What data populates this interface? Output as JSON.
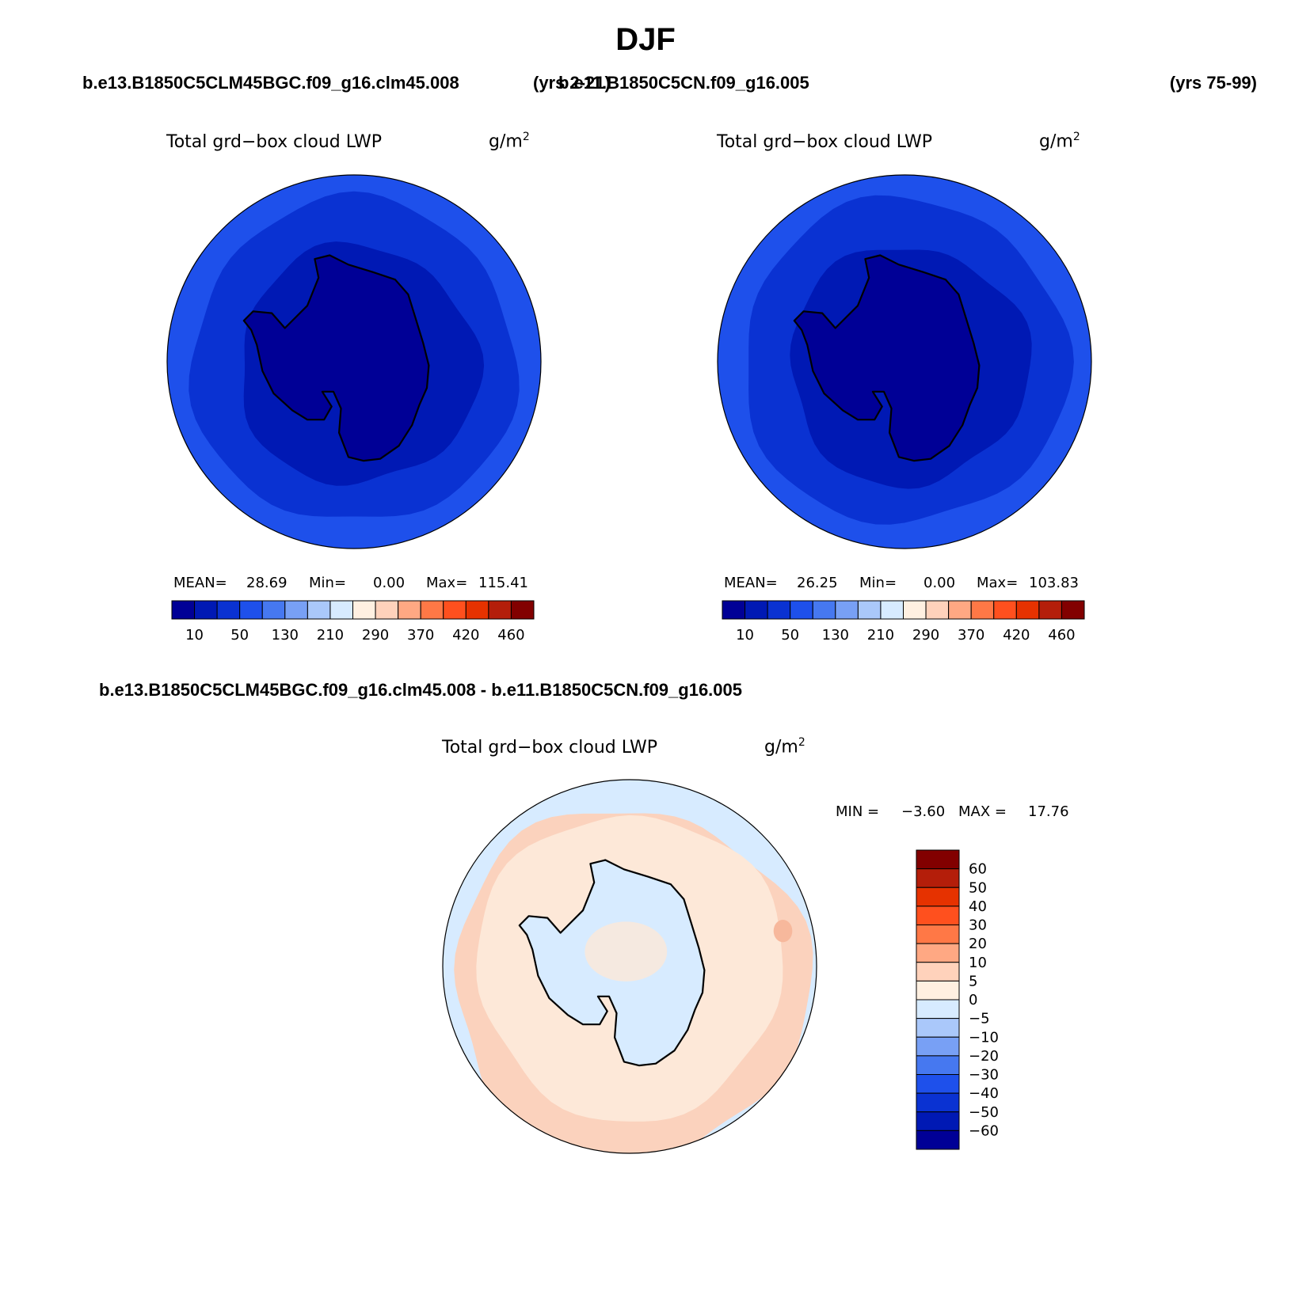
{
  "page": {
    "title": "DJF",
    "case1": "b.e13.B1850C5CLM45BGC.f09_g16.clm45.008",
    "case1_years": "(yrs 2-21)",
    "case2": "b.e11.B1850C5CN.f09_g16.005",
    "case2_years": "(yrs 75-99)",
    "diff_title": "b.e13.B1850C5CLM45BGC.f09_g16.clm45.008 - b.e11.B1850C5CN.f09_g16.005"
  },
  "panels": [
    {
      "title": "Total grd−box cloud LWP",
      "units_base": "g/m",
      "units_exp": "2",
      "mean_label": "MEAN=",
      "mean": "28.69",
      "min_label": "Min=",
      "min": "0.00",
      "max_label": "Max=",
      "max": "115.41"
    },
    {
      "title": "Total grd−box cloud LWP",
      "units_base": "g/m",
      "units_exp": "2",
      "mean_label": "MEAN=",
      "mean": "26.25",
      "min_label": "Min=",
      "min": "0.00",
      "max_label": "Max=",
      "max": "103.83"
    }
  ],
  "diff_panel": {
    "title": "Total grd−box cloud LWP",
    "units_base": "g/m",
    "units_exp": "2",
    "min_label": "MIN =",
    "min": "−3.60",
    "max_label": "MAX =",
    "max": "17.76"
  },
  "chart_data": [
    {
      "type": "heatmap",
      "title": "Total grd-box cloud LWP",
      "units": "g/m^2",
      "projection": "south-polar stereographic",
      "run": "b.e13.B1850C5CLM45BGC.f09_g16.clm45.008 (yrs 2-21)",
      "colorbar_ticks": [
        "10",
        "50",
        "130",
        "210",
        "290",
        "370",
        "420",
        "460"
      ],
      "colorbar_colors": [
        "#000096",
        "#0019b4",
        "#0a32d2",
        "#1e50eb",
        "#4678f0",
        "#78a0f5",
        "#aac8fa",
        "#d7ebff",
        "#fff0e1",
        "#ffd2bb",
        "#ffa883",
        "#ff7846",
        "#ff501e",
        "#e63200",
        "#b41e0a",
        "#820000"
      ],
      "stats": {
        "mean": 28.69,
        "min": 0.0,
        "max": 115.41
      },
      "field_levels": [
        "#000096",
        "#0019b4",
        "#0a32d2",
        "#1e50eb"
      ]
    },
    {
      "type": "heatmap",
      "title": "Total grd-box cloud LWP",
      "units": "g/m^2",
      "projection": "south-polar stereographic",
      "run": "b.e11.B1850C5CN.f09_g16.005 (yrs 75-99)",
      "colorbar_ticks": [
        "10",
        "50",
        "130",
        "210",
        "290",
        "370",
        "420",
        "460"
      ],
      "colorbar_colors": [
        "#000096",
        "#0019b4",
        "#0a32d2",
        "#1e50eb",
        "#4678f0",
        "#78a0f5",
        "#aac8fa",
        "#d7ebff",
        "#fff0e1",
        "#ffd2bb",
        "#ffa883",
        "#ff7846",
        "#ff501e",
        "#e63200",
        "#b41e0a",
        "#820000"
      ],
      "stats": {
        "mean": 26.25,
        "min": 0.0,
        "max": 103.83
      },
      "field_levels": [
        "#000096",
        "#0019b4",
        "#0a32d2",
        "#1e50eb"
      ]
    },
    {
      "type": "heatmap",
      "title": "Total grd-box cloud LWP (difference)",
      "units": "g/m^2",
      "projection": "south-polar stereographic",
      "colorbar_ticks": [
        "60",
        "50",
        "40",
        "30",
        "20",
        "10",
        "5",
        "0",
        "−5",
        "−10",
        "−20",
        "−30",
        "−40",
        "−50",
        "−60"
      ],
      "colorbar_colors": [
        "#820000",
        "#b41e0a",
        "#e63200",
        "#ff501e",
        "#ff7846",
        "#ffa883",
        "#ffd2bb",
        "#fff0e1",
        "#d7ebff",
        "#aac8fa",
        "#78a0f5",
        "#4678f0",
        "#1e50eb",
        "#0a32d2",
        "#0019b4",
        "#000096"
      ],
      "stats": {
        "min": -3.6,
        "max": 17.76
      },
      "field_levels": [
        "#fde8d8",
        "#fbd2bd",
        "#f7b89c",
        "#d7ebff"
      ]
    }
  ]
}
